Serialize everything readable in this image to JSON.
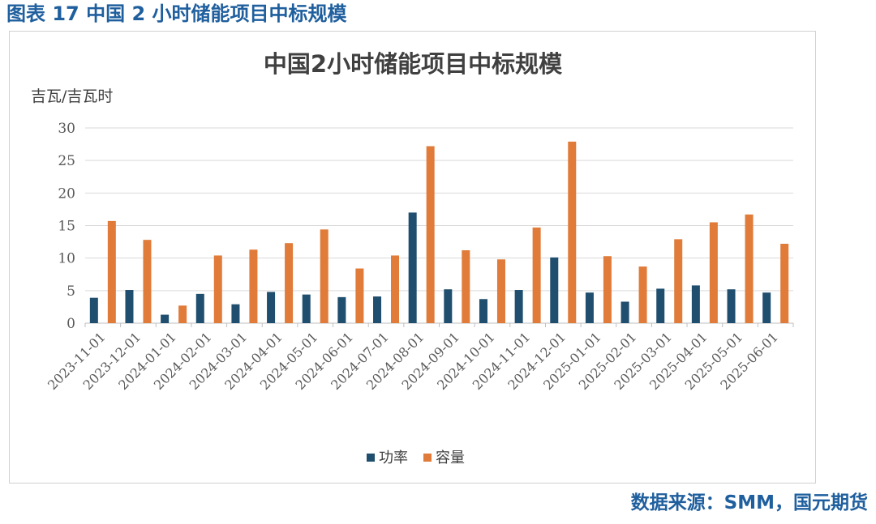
{
  "caption": "图表 17 中国 2 小时储能项目中标规模",
  "source": "数据来源：SMM，国元期货",
  "colors": {
    "power": "#1f4e6e",
    "capacity": "#e07b39",
    "caption": "#1f5f9e",
    "grid": "#d9d9d9"
  },
  "chart_data": {
    "type": "bar",
    "title": "中国2小时储能项目中标规模",
    "ylabel": "吉瓦/吉瓦时",
    "xlabel": "",
    "ylim": [
      0,
      30
    ],
    "yticks": [
      0,
      5,
      10,
      15,
      20,
      25,
      30
    ],
    "grid": true,
    "legend_position": "bottom",
    "categories": [
      "2023-11-01",
      "2023-12-01",
      "2024-01-01",
      "2024-02-01",
      "2024-03-01",
      "2024-04-01",
      "2024-05-01",
      "2024-06-01",
      "2024-07-01",
      "2024-08-01",
      "2024-09-01",
      "2024-10-01",
      "2024-11-01",
      "2024-12-01",
      "2025-01-01",
      "2025-02-01",
      "2025-03-01",
      "2025-04-01",
      "2025-05-01",
      "2025-06-01"
    ],
    "series": [
      {
        "name": "功率",
        "values": [
          3.9,
          5.1,
          1.3,
          4.5,
          2.9,
          4.8,
          4.4,
          4.0,
          4.1,
          17.0,
          5.2,
          3.7,
          5.1,
          10.1,
          4.7,
          3.3,
          5.3,
          5.8,
          5.2,
          4.7
        ]
      },
      {
        "name": "容量",
        "values": [
          15.7,
          12.8,
          2.7,
          10.4,
          11.3,
          12.3,
          14.4,
          8.4,
          10.4,
          27.2,
          11.2,
          9.8,
          14.7,
          27.9,
          10.3,
          8.7,
          12.9,
          15.5,
          16.7,
          12.2
        ]
      }
    ]
  }
}
